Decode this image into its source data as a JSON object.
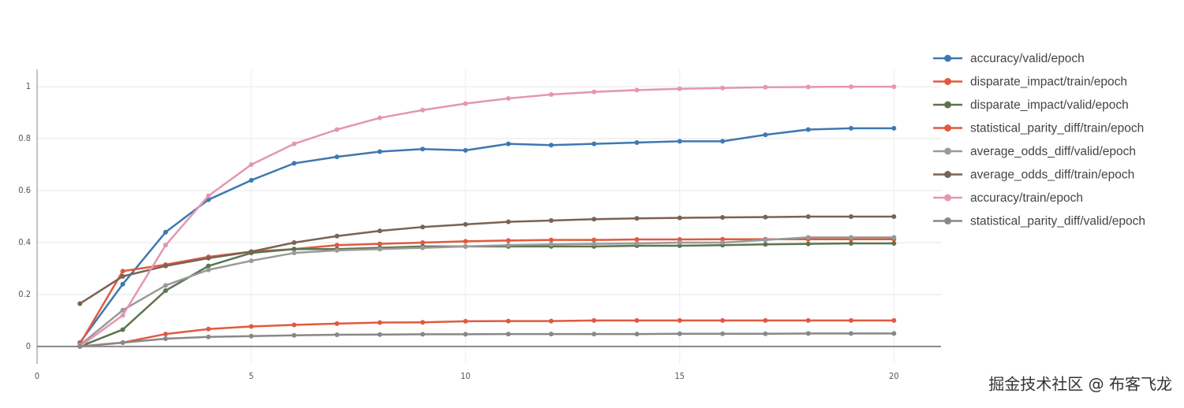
{
  "chart_data": {
    "type": "line",
    "x": [
      1,
      2,
      3,
      4,
      5,
      6,
      7,
      8,
      9,
      10,
      11,
      12,
      13,
      14,
      15,
      16,
      17,
      18,
      19,
      20
    ],
    "xlim": [
      0,
      21.1
    ],
    "ylim": [
      -0.067,
      1.067
    ],
    "xticks": [
      0,
      5,
      10,
      15,
      20
    ],
    "yticks": [
      0,
      0.2,
      0.4,
      0.6,
      0.8,
      1
    ],
    "grid": true,
    "legend_position": "right",
    "series": [
      {
        "name": "accuracy/valid/epoch",
        "color": "#3f78b0",
        "values": [
          0.015,
          0.24,
          0.44,
          0.565,
          0.64,
          0.705,
          0.73,
          0.75,
          0.76,
          0.755,
          0.78,
          0.775,
          0.78,
          0.785,
          0.79,
          0.79,
          0.815,
          0.835,
          0.84,
          0.84
        ]
      },
      {
        "name": "disparate_impact/train/epoch",
        "color": "#e05a3f",
        "values": [
          0.01,
          0.29,
          0.315,
          0.345,
          0.365,
          0.375,
          0.39,
          0.395,
          0.4,
          0.405,
          0.408,
          0.41,
          0.41,
          0.412,
          0.412,
          0.413,
          0.413,
          0.413,
          0.413,
          0.413
        ]
      },
      {
        "name": "disparate_impact/valid/epoch",
        "color": "#5c7550",
        "values": [
          0,
          0.065,
          0.215,
          0.31,
          0.36,
          0.375,
          0.375,
          0.38,
          0.385,
          0.385,
          0.385,
          0.385,
          0.385,
          0.388,
          0.388,
          0.39,
          0.393,
          0.395,
          0.397,
          0.397
        ]
      },
      {
        "name": "statistical_parity_diff/train/epoch",
        "color": "#e05a3f",
        "values": [
          0,
          0.015,
          0.048,
          0.067,
          0.077,
          0.083,
          0.088,
          0.092,
          0.093,
          0.097,
          0.098,
          0.098,
          0.1,
          0.1,
          0.1,
          0.1,
          0.1,
          0.1,
          0.1,
          0.1
        ]
      },
      {
        "name": "average_odds_diff/valid/epoch",
        "color": "#9a9a9a",
        "values": [
          0.005,
          0.14,
          0.235,
          0.295,
          0.33,
          0.36,
          0.37,
          0.375,
          0.38,
          0.385,
          0.39,
          0.393,
          0.395,
          0.397,
          0.4,
          0.4,
          0.41,
          0.42,
          0.42,
          0.42
        ]
      },
      {
        "name": "average_odds_diff/train/epoch",
        "color": "#7a6353",
        "values": [
          0.165,
          0.27,
          0.31,
          0.34,
          0.365,
          0.4,
          0.425,
          0.445,
          0.46,
          0.47,
          0.48,
          0.485,
          0.49,
          0.493,
          0.495,
          0.497,
          0.498,
          0.5,
          0.5,
          0.5
        ]
      },
      {
        "name": "accuracy/train/epoch",
        "color": "#e397b0",
        "values": [
          0,
          0.12,
          0.39,
          0.58,
          0.7,
          0.78,
          0.835,
          0.88,
          0.91,
          0.935,
          0.955,
          0.97,
          0.98,
          0.987,
          0.992,
          0.995,
          0.998,
          0.999,
          1,
          1
        ]
      },
      {
        "name": "statistical_parity_diff/valid/epoch",
        "color": "#888888",
        "values": [
          0,
          0.015,
          0.03,
          0.037,
          0.04,
          0.043,
          0.045,
          0.046,
          0.047,
          0.047,
          0.048,
          0.048,
          0.048,
          0.048,
          0.049,
          0.049,
          0.049,
          0.05,
          0.05,
          0.05
        ]
      }
    ],
    "watermark": "掘金技术社区 @ 布客飞龙"
  }
}
